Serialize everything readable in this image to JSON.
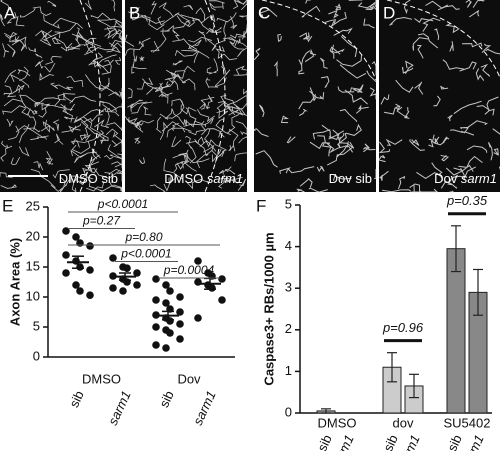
{
  "panels": [
    {
      "letter": "A",
      "treatment": "DMSO",
      "genotype": "sib"
    },
    {
      "letter": "B",
      "treatment": "DMSO",
      "genotype": "sarm1"
    },
    {
      "letter": "C",
      "treatment": "Dov",
      "genotype": "sib"
    },
    {
      "letter": "D",
      "treatment": "Dov",
      "genotype": "sarm1"
    }
  ],
  "chart_data": [
    {
      "type": "strip",
      "panel": "E",
      "y_label": "Axon Area (%)",
      "categories": [
        "sib",
        "sarm1",
        "sib",
        "sarm1"
      ],
      "groups": [
        "DMSO",
        "Dov"
      ],
      "ylim": [
        0,
        25
      ],
      "yticks": [
        0,
        5,
        10,
        15,
        20,
        25
      ],
      "series": [
        {
          "values": [
            21,
            20,
            19,
            18.5,
            17,
            16,
            15,
            14.5,
            14,
            12,
            11,
            10.3
          ],
          "mean": 15.8,
          "sem": 1.0
        },
        {
          "values": [
            16.5,
            15,
            14.8,
            14,
            13.5,
            13,
            12.5,
            12,
            11.5,
            11
          ],
          "mean": 13.4,
          "sem": 0.6
        },
        {
          "values": [
            13,
            12,
            11,
            10,
            9.5,
            9,
            8,
            7.5,
            7,
            6.5,
            6,
            5.5,
            5,
            4.5,
            4,
            3,
            2,
            1.5
          ],
          "mean": 6.9,
          "sem": 0.7
        },
        {
          "values": [
            16,
            14,
            13.5,
            13,
            12.5,
            12,
            11.5,
            9.5,
            6.5
          ],
          "mean": 12.2,
          "sem": 0.9
        }
      ],
      "comparisons": [
        {
          "between": [
            0,
            2
          ],
          "label": "p<0.0001"
        },
        {
          "between": [
            0,
            1
          ],
          "label": "p=0.27"
        },
        {
          "between": [
            0,
            3
          ],
          "label": "p=0.80"
        },
        {
          "between": [
            1,
            2
          ],
          "label": "p<0.0001"
        },
        {
          "between": [
            2,
            3
          ],
          "label": "p=0.0004"
        }
      ]
    },
    {
      "type": "bar",
      "panel": "F",
      "y_label": "Caspase3+ RBs/1000 µm",
      "categories": [
        "sib",
        "sarm1",
        "sib",
        "sarm1",
        "sib",
        "sarm1"
      ],
      "groups": [
        "DMSO",
        "dov",
        "SU5402"
      ],
      "ylim": [
        0,
        5
      ],
      "yticks": [
        0,
        1,
        2,
        3,
        4,
        5
      ],
      "values": [
        0.05,
        0,
        1.1,
        0.65,
        3.95,
        2.9
      ],
      "errors": [
        0.05,
        0,
        0.35,
        0.28,
        0.55,
        0.55
      ],
      "colors": [
        "#aaaaaa",
        "#aaaaaa",
        "#cccccc",
        "#cccccc",
        "#888888",
        "#888888"
      ],
      "comparisons": [
        {
          "between": [
            2,
            3
          ],
          "label": "p=0.96"
        },
        {
          "between": [
            4,
            5
          ],
          "label": "p=0.35"
        }
      ]
    }
  ]
}
